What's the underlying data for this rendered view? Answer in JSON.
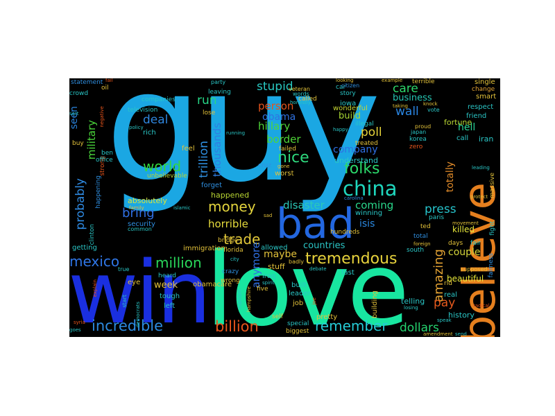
{
  "cloud": {
    "background": "#000000",
    "words": {
      "guy": {
        "text": "guy",
        "color": "#1ba7e3"
      },
      "win": {
        "text": "win",
        "color": "#1a2fe0"
      },
      "love": {
        "text": "love",
        "color": "#18e6a0"
      },
      "believe": {
        "text": "believe",
        "color": "#e57f1e"
      },
      "bad": {
        "text": "bad",
        "color": "#2367e0"
      },
      "china": {
        "text": "china",
        "color": "#1fd6bd"
      },
      "tremendous": {
        "text": "tremendous",
        "color": "#e8d33c"
      },
      "remember": {
        "text": "remember",
        "color": "#26cbd6"
      },
      "incredible": {
        "text": "incredible",
        "color": "#2d8be0"
      },
      "billion": {
        "text": "billion",
        "color": "#e8551c"
      },
      "dollars": {
        "text": "dollars",
        "color": "#25d36f"
      },
      "mexico": {
        "text": "mexico",
        "color": "#2f76e6"
      },
      "million": {
        "text": "million",
        "color": "#2ad85b"
      },
      "money": {
        "text": "money",
        "color": "#e3d43d"
      },
      "trade": {
        "text": "trade",
        "color": "#e3c93a"
      },
      "world": {
        "text": "world",
        "color": "#33d63f"
      },
      "nice": {
        "text": "nice",
        "color": "#2ed97d"
      },
      "folks": {
        "text": "folks",
        "color": "#2bd96b"
      },
      "deal": {
        "text": "deal",
        "color": "#2f86de"
      },
      "run": {
        "text": "run",
        "color": "#27d687"
      },
      "stupid": {
        "text": "stupid",
        "color": "#29c9c2"
      },
      "care": {
        "text": "care",
        "color": "#2dd96b"
      },
      "business": {
        "text": "business",
        "color": "#26c6b3"
      },
      "wall": {
        "text": "wall",
        "color": "#2a86e3"
      },
      "hell": {
        "text": "hell",
        "color": "#29d496"
      },
      "bring": {
        "text": "bring",
        "color": "#2f6fe3"
      },
      "disaster": {
        "text": "disaster",
        "color": "#2bc9b8"
      },
      "coming": {
        "text": "coming",
        "color": "#2ad88c"
      },
      "isis": {
        "text": "isis",
        "color": "#2a88e0"
      },
      "press": {
        "text": "press",
        "color": "#27c4cc"
      },
      "amazing": {
        "text": "amazing",
        "color": "#e3a233"
      },
      "pay": {
        "text": "pay",
        "color": "#e85a1d"
      },
      "horrible": {
        "text": "horrible",
        "color": "#e8dd3d"
      },
      "probably": {
        "text": "probably",
        "color": "#2f8be3"
      },
      "military": {
        "text": "military",
        "color": "#4ad43a"
      },
      "seen": {
        "text": "seen",
        "color": "#2a84de"
      },
      "trillion": {
        "text": "trillion",
        "color": "#2f8fe0"
      },
      "thousands": {
        "text": "thousands",
        "color": "#2f7ee3"
      },
      "person": {
        "text": "person",
        "color": "#e2531c"
      },
      "obama": {
        "text": "obama",
        "color": "#2f72e3"
      },
      "hillary": {
        "text": "hillary",
        "color": "#4fd638"
      },
      "border": {
        "text": "border",
        "color": "#4fd638"
      },
      "company": {
        "text": "company",
        "color": "#2f6fe3"
      },
      "poll": {
        "text": "poll",
        "color": "#e8d43a"
      },
      "build": {
        "text": "build",
        "color": "#a8d633"
      },
      "maybe": {
        "text": "maybe",
        "color": "#e3c23a"
      },
      "anymore": {
        "text": "anymore",
        "color": "#2f6fe3"
      },
      "totally": {
        "text": "totally",
        "color": "#e38c2a"
      },
      "couple": {
        "text": "couple",
        "color": "#d4d43a"
      },
      "countries": {
        "text": "countries",
        "color": "#2ac6c6"
      },
      "week": {
        "text": "week",
        "color": "#e3c23a"
      },
      "absolutely": {
        "text": "absolutely",
        "color": "#d8e63a"
      },
      "happened": {
        "text": "happened",
        "color": "#b9d633"
      },
      "fortune": {
        "text": "fortune",
        "color": "#b9d633"
      },
      "killed": {
        "text": "killed",
        "color": "#e8e83a"
      },
      "beautiful": {
        "text": "beautiful",
        "color": "#e8e83a"
      },
      "telling": {
        "text": "telling",
        "color": "#2ac6c6"
      },
      "history": {
        "text": "history",
        "color": "#2ac6c6"
      },
      "understand": {
        "text": "understand",
        "color": "#2ac6c6"
      },
      "wonderful": {
        "text": "wonderful",
        "color": "#c7d633"
      },
      "iowa": {
        "text": "iowa",
        "color": "#2ac6c6"
      },
      "iran": {
        "text": "iran",
        "color": "#2ac6c6"
      },
      "call": {
        "text": "call",
        "color": "#2ac6c6"
      },
      "friend": {
        "text": "friend",
        "color": "#2ac6c6"
      },
      "smart": {
        "text": "smart",
        "color": "#e3c23a"
      },
      "respect": {
        "text": "respect",
        "color": "#2ac6c6"
      },
      "change": {
        "text": "change",
        "color": "#e3a233"
      },
      "single": {
        "text": "single",
        "color": "#e3c23a"
      },
      "television": {
        "text": "television",
        "color": "#2ac6c6"
      },
      "companies": {
        "text": "companies",
        "color": "#2ac6c6"
      },
      "rich": {
        "text": "rich",
        "color": "#2ac6c6"
      },
      "unbelievable": {
        "text": "unbelievable",
        "color": "#b9d633"
      },
      "feel": {
        "text": "feel",
        "color": "#e3c23a"
      },
      "lose": {
        "text": "lose",
        "color": "#e3c23a"
      },
      "forget": {
        "text": "forget",
        "color": "#2f8fe0"
      },
      "security": {
        "text": "security",
        "color": "#2f8fe0"
      },
      "immigration": {
        "text": "immigration",
        "color": "#e3c23a"
      },
      "getting": {
        "text": "getting",
        "color": "#2ac6c6"
      },
      "heard": {
        "text": "heard",
        "color": "#2ac6c6"
      },
      "tough": {
        "text": "tough",
        "color": "#2ac6c6"
      },
      "eye": {
        "text": "eye",
        "color": "#e3c23a"
      },
      "left": {
        "text": "left",
        "color": "#2ac6c6"
      },
      "obamacare": {
        "text": "obamacare",
        "color": "#e3c23a"
      },
      "wrong": {
        "text": "wrong",
        "color": "#e3c23a"
      },
      "stuff": {
        "text": "stuff",
        "color": "#e3c23a"
      },
      "iraq": {
        "text": "iraq",
        "color": "#2ac6c6"
      },
      "built": {
        "text": "built",
        "color": "#2ac6c6"
      },
      "leader": {
        "text": "leader",
        "color": "#2ac6c6"
      },
      "job": {
        "text": "job",
        "color": "#e3c23a"
      },
      "pretty": {
        "text": "pretty",
        "color": "#e3c23a"
      },
      "building": {
        "text": "building",
        "color": "#e3c23a"
      },
      "fast": {
        "text": "fast",
        "color": "#2ac6c6"
      },
      "allowed": {
        "text": "allowed",
        "color": "#2ac6c6"
      },
      "worst": {
        "text": "worst",
        "color": "#e3c23a"
      },
      "failed": {
        "text": "failed",
        "color": "#e3c23a"
      },
      "treated": {
        "text": "treated",
        "color": "#e3c23a"
      },
      "winning": {
        "text": "winning",
        "color": "#2ac6c6"
      },
      "illegal": {
        "text": "illegal",
        "color": "#2ac6c6"
      },
      "korea": {
        "text": "korea",
        "color": "#2ac6c6"
      },
      "zero": {
        "text": "zero",
        "color": "#e8551c"
      },
      "terrible": {
        "text": "terrible",
        "color": "#e3c23a"
      },
      "oil": {
        "text": "oil",
        "color": "#e3c23a"
      },
      "crowd": {
        "text": "crowd",
        "color": "#2ac6c6"
      },
      "statement": {
        "text": "statement",
        "color": "#2f8fe0"
      },
      "ted": {
        "text": "ted",
        "color": "#e3c23a"
      },
      "total": {
        "text": "total",
        "color": "#2f8fe0"
      },
      "south": {
        "text": "south",
        "color": "#2ac6c6"
      },
      "days": {
        "text": "days",
        "color": "#e3c23a"
      },
      "fight": {
        "text": "fight",
        "color": "#2ac6c6"
      },
      "real": {
        "text": "real",
        "color": "#2ac6c6"
      },
      "special": {
        "text": "special",
        "color": "#2ac6c6"
      },
      "biggest": {
        "text": "biggest",
        "color": "#e3c23a"
      },
      "self": {
        "text": "self",
        "color": "#e3c23a"
      },
      "strong": {
        "text": "strong",
        "color": "#e8551c"
      },
      "clinton": {
        "text": "clinton",
        "color": "#2ac6c6"
      },
      "happening": {
        "text": "happening",
        "color": "#2f8fe0"
      },
      "buy": {
        "text": "buy",
        "color": "#e3c23a"
      },
      "ben": {
        "text": "ben",
        "color": "#2ac6c6"
      },
      "office": {
        "text": "office",
        "color": "#2ac6c6"
      },
      "city": {
        "text": "city",
        "color": "#2ac6c6"
      },
      "bridge": {
        "text": "bridge",
        "color": "#e3c23a"
      },
      "florida": {
        "text": "florida",
        "color": "#e3c23a"
      },
      "crazy": {
        "text": "crazy",
        "color": "#2f8fe0"
      },
      "nation": {
        "text": "nation",
        "color": "#2ac6c6"
      },
      "five": {
        "text": "five",
        "color": "#e3c23a"
      },
      "paris": {
        "text": "paris",
        "color": "#2ac6c6"
      },
      "rid": {
        "text": "rid",
        "color": "#e3c23a"
      },
      "fair": {
        "text": "fair",
        "color": "#2ac6c6"
      },
      "massive": {
        "text": "massive",
        "color": "#e3c23a"
      },
      "fairness": {
        "text": "fairness",
        "color": "#2f8fe0"
      },
      "supposed": {
        "text": "supposed",
        "color": "#e3c23a"
      },
      "leaving": {
        "text": "leaving",
        "color": "#2ac6c6"
      },
      "party": {
        "text": "party",
        "color": "#2ac6c6"
      },
      "car": {
        "text": "car",
        "color": "#2ac6c6"
      },
      "story": {
        "text": "story",
        "color": "#2ac6c6"
      },
      "called": {
        "text": "called",
        "color": "#e3c23a"
      },
      "vote": {
        "text": "vote",
        "color": "#2ac6c6"
      },
      "proud": {
        "text": "proud",
        "color": "#e3c23a"
      },
      "japan": {
        "text": "japan",
        "color": "#2ac6c6"
      },
      "cruz": {
        "text": "cruz",
        "color": "#2f8fe0"
      },
      "hundreds": {
        "text": "hundreds",
        "color": "#e3c23a"
      },
      "citizen": {
        "text": "citizen",
        "color": "#2f8fe0"
      },
      "veteran": {
        "text": "veteran",
        "color": "#e3c23a"
      },
      "words": {
        "text": "words",
        "color": "#2ac6c6"
      },
      "gone": {
        "text": "gone",
        "color": "#e3c23a"
      },
      "common": {
        "text": "common",
        "color": "#2ac6c6"
      },
      "family": {
        "text": "family",
        "color": "#e3c23a"
      },
      "islamic": {
        "text": "islamic",
        "color": "#2ac6c6"
      },
      "policy": {
        "text": "policy",
        "color": "#2ac6c6"
      },
      "sad": {
        "text": "sad",
        "color": "#e3c23a"
      },
      "badly": {
        "text": "badly",
        "color": "#e3c23a"
      },
      "start": {
        "text": "start",
        "color": "#2ac6c6"
      },
      "democrats": {
        "text": "democrats",
        "color": "#2ac6c6"
      },
      "true": {
        "text": "true",
        "color": "#2ac6c6"
      },
      "syria": {
        "text": "syria",
        "color": "#e8551c"
      },
      "goes": {
        "text": "goes",
        "color": "#2ac6c6"
      },
      "carolina": {
        "text": "carolina",
        "color": "#2f8fe0"
      },
      "seek": {
        "text": "seek",
        "color": "#2ac6c6"
      },
      "leading": {
        "text": "leading",
        "color": "#2ac6c6"
      },
      "protect": {
        "text": "protect",
        "color": "#e3c23a"
      },
      "movement": {
        "text": "movement",
        "color": "#e3c23a"
      },
      "radical": {
        "text": "radical",
        "color": "#e8551c"
      },
      "amendment": {
        "text": "amendment",
        "color": "#e3c23a"
      },
      "send": {
        "text": "send",
        "color": "#2ac6c6"
      },
      "speak": {
        "text": "speak",
        "color": "#2ac6c6"
      },
      "explain": {
        "text": "explain",
        "color": "#e8551c"
      },
      "negative": {
        "text": "negative",
        "color": "#e8551c"
      },
      "happy": {
        "text": "happy",
        "color": "#2ac6c6"
      },
      "looking": {
        "text": "looking",
        "color": "#e3c23a"
      },
      "example": {
        "text": "example",
        "color": "#e3c23a"
      },
      "running": {
        "text": "running",
        "color": "#2ac6c6"
      },
      "taking": {
        "text": "taking",
        "color": "#e3c23a"
      },
      "knock": {
        "text": "knock",
        "color": "#e3c23a"
      },
      "honestly": {
        "text": "honestly",
        "color": "#2ac6c6"
      },
      "foreign": {
        "text": "foreign",
        "color": "#e3c23a"
      },
      "losing": {
        "text": "losing",
        "color": "#2ac6c6"
      },
      "spirit": {
        "text": "spirit",
        "color": "#2ac6c6"
      },
      "hampshire": {
        "text": "hampshire",
        "color": "#e3c23a"
      },
      "deal2": {
        "text": "debate",
        "color": "#2ac6c6"
      },
      "ice": {
        "text": "joe",
        "color": "#e8551c"
      },
      "fail": {
        "text": "fail",
        "color": "#e8551c"
      },
      "sort": {
        "text": "sort",
        "color": "#2ac6c6"
      }
    }
  }
}
